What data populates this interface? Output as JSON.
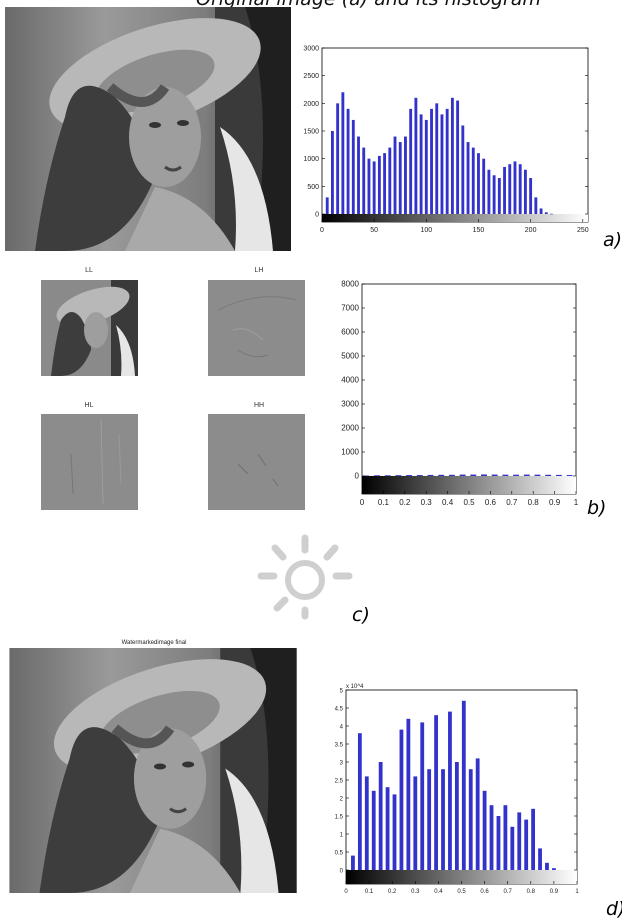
{
  "caption_top": "Original image (a) and its histogram",
  "panels": [
    {
      "letter": "a)"
    },
    {
      "letter": "b)"
    },
    {
      "letter": "c)"
    },
    {
      "letter": "d)"
    }
  ],
  "subbands": {
    "ll": "LL",
    "lh": "LH",
    "hl": "HL",
    "hh": "HH"
  },
  "watermarked_title": "Watermarkedimage final",
  "sun_icon": "sun-icon",
  "colors": {
    "bar": "#3333cc",
    "photo_dark": "#2b2b2b",
    "photo_light": "#cfcfcf",
    "sun": "#cfcfcf"
  },
  "chart_data": [
    {
      "id": "hist-a",
      "type": "bar",
      "title": "",
      "xlabel": "",
      "ylabel": "",
      "xlim": [
        0,
        255
      ],
      "ylim": [
        0,
        3000
      ],
      "xticks": [
        0,
        50,
        100,
        150,
        200,
        250
      ],
      "yticks": [
        0,
        500,
        1000,
        1500,
        2000,
        2500,
        3000
      ],
      "ytick_prefix": "",
      "x": [
        5,
        10,
        15,
        20,
        25,
        30,
        35,
        40,
        45,
        50,
        55,
        60,
        65,
        70,
        75,
        80,
        85,
        90,
        95,
        100,
        105,
        110,
        115,
        120,
        125,
        130,
        135,
        140,
        145,
        150,
        155,
        160,
        165,
        170,
        175,
        180,
        185,
        190,
        195,
        200,
        205,
        210,
        215,
        220
      ],
      "values": [
        300,
        1500,
        2000,
        2200,
        1900,
        1700,
        1400,
        1200,
        1000,
        950,
        1050,
        1100,
        1200,
        1400,
        1300,
        1400,
        1900,
        2100,
        1800,
        1700,
        1900,
        2000,
        1800,
        1900,
        2100,
        2050,
        1600,
        1300,
        1200,
        1100,
        1000,
        800,
        700,
        650,
        850,
        900,
        950,
        900,
        800,
        650,
        300,
        100,
        30,
        5
      ]
    },
    {
      "id": "hist-b",
      "type": "bar",
      "title": "",
      "xlabel": "",
      "ylabel": "",
      "xlim": [
        0,
        1
      ],
      "ylim": [
        0,
        8000
      ],
      "xticks": [
        0,
        0.1,
        0.2,
        0.3,
        0.4,
        0.5,
        0.6,
        0.7,
        0.8,
        0.9,
        1
      ],
      "yticks": [
        0,
        1000,
        2000,
        3000,
        4000,
        5000,
        6000,
        7000,
        8000
      ],
      "ytick_prefix": "",
      "x": [
        0.02,
        0.07,
        0.12,
        0.17,
        0.22,
        0.27,
        0.32,
        0.37,
        0.42,
        0.47,
        0.52,
        0.57,
        0.62,
        0.67,
        0.72,
        0.77,
        0.82,
        0.87,
        0.92,
        0.97
      ],
      "values": [
        20,
        30,
        30,
        35,
        40,
        40,
        45,
        50,
        50,
        60,
        60,
        65,
        60,
        55,
        55,
        60,
        55,
        50,
        45,
        40
      ]
    },
    {
      "id": "hist-d",
      "type": "bar",
      "title": "",
      "xlabel": "",
      "ylabel": "",
      "xlim": [
        0,
        1
      ],
      "ylim": [
        0,
        5
      ],
      "xticks": [
        0,
        0.1,
        0.2,
        0.3,
        0.4,
        0.5,
        0.6,
        0.7,
        0.8,
        0.9,
        1
      ],
      "yticks": [
        0,
        0.5,
        1,
        1.5,
        2,
        2.5,
        3,
        3.5,
        4,
        4.5,
        5
      ],
      "ytick_prefix": "x 10^4",
      "x": [
        0.03,
        0.06,
        0.09,
        0.12,
        0.15,
        0.18,
        0.21,
        0.24,
        0.27,
        0.3,
        0.33,
        0.36,
        0.39,
        0.42,
        0.45,
        0.48,
        0.51,
        0.54,
        0.57,
        0.6,
        0.63,
        0.66,
        0.69,
        0.72,
        0.75,
        0.78,
        0.81,
        0.84,
        0.87,
        0.9
      ],
      "values": [
        0.4,
        3.8,
        2.6,
        2.2,
        3.0,
        2.3,
        2.1,
        3.9,
        4.2,
        2.6,
        4.1,
        2.8,
        4.3,
        2.8,
        4.4,
        3.0,
        4.7,
        2.8,
        3.1,
        2.2,
        1.8,
        1.5,
        1.8,
        1.2,
        1.6,
        1.4,
        1.7,
        0.6,
        0.2,
        0.05
      ]
    }
  ]
}
